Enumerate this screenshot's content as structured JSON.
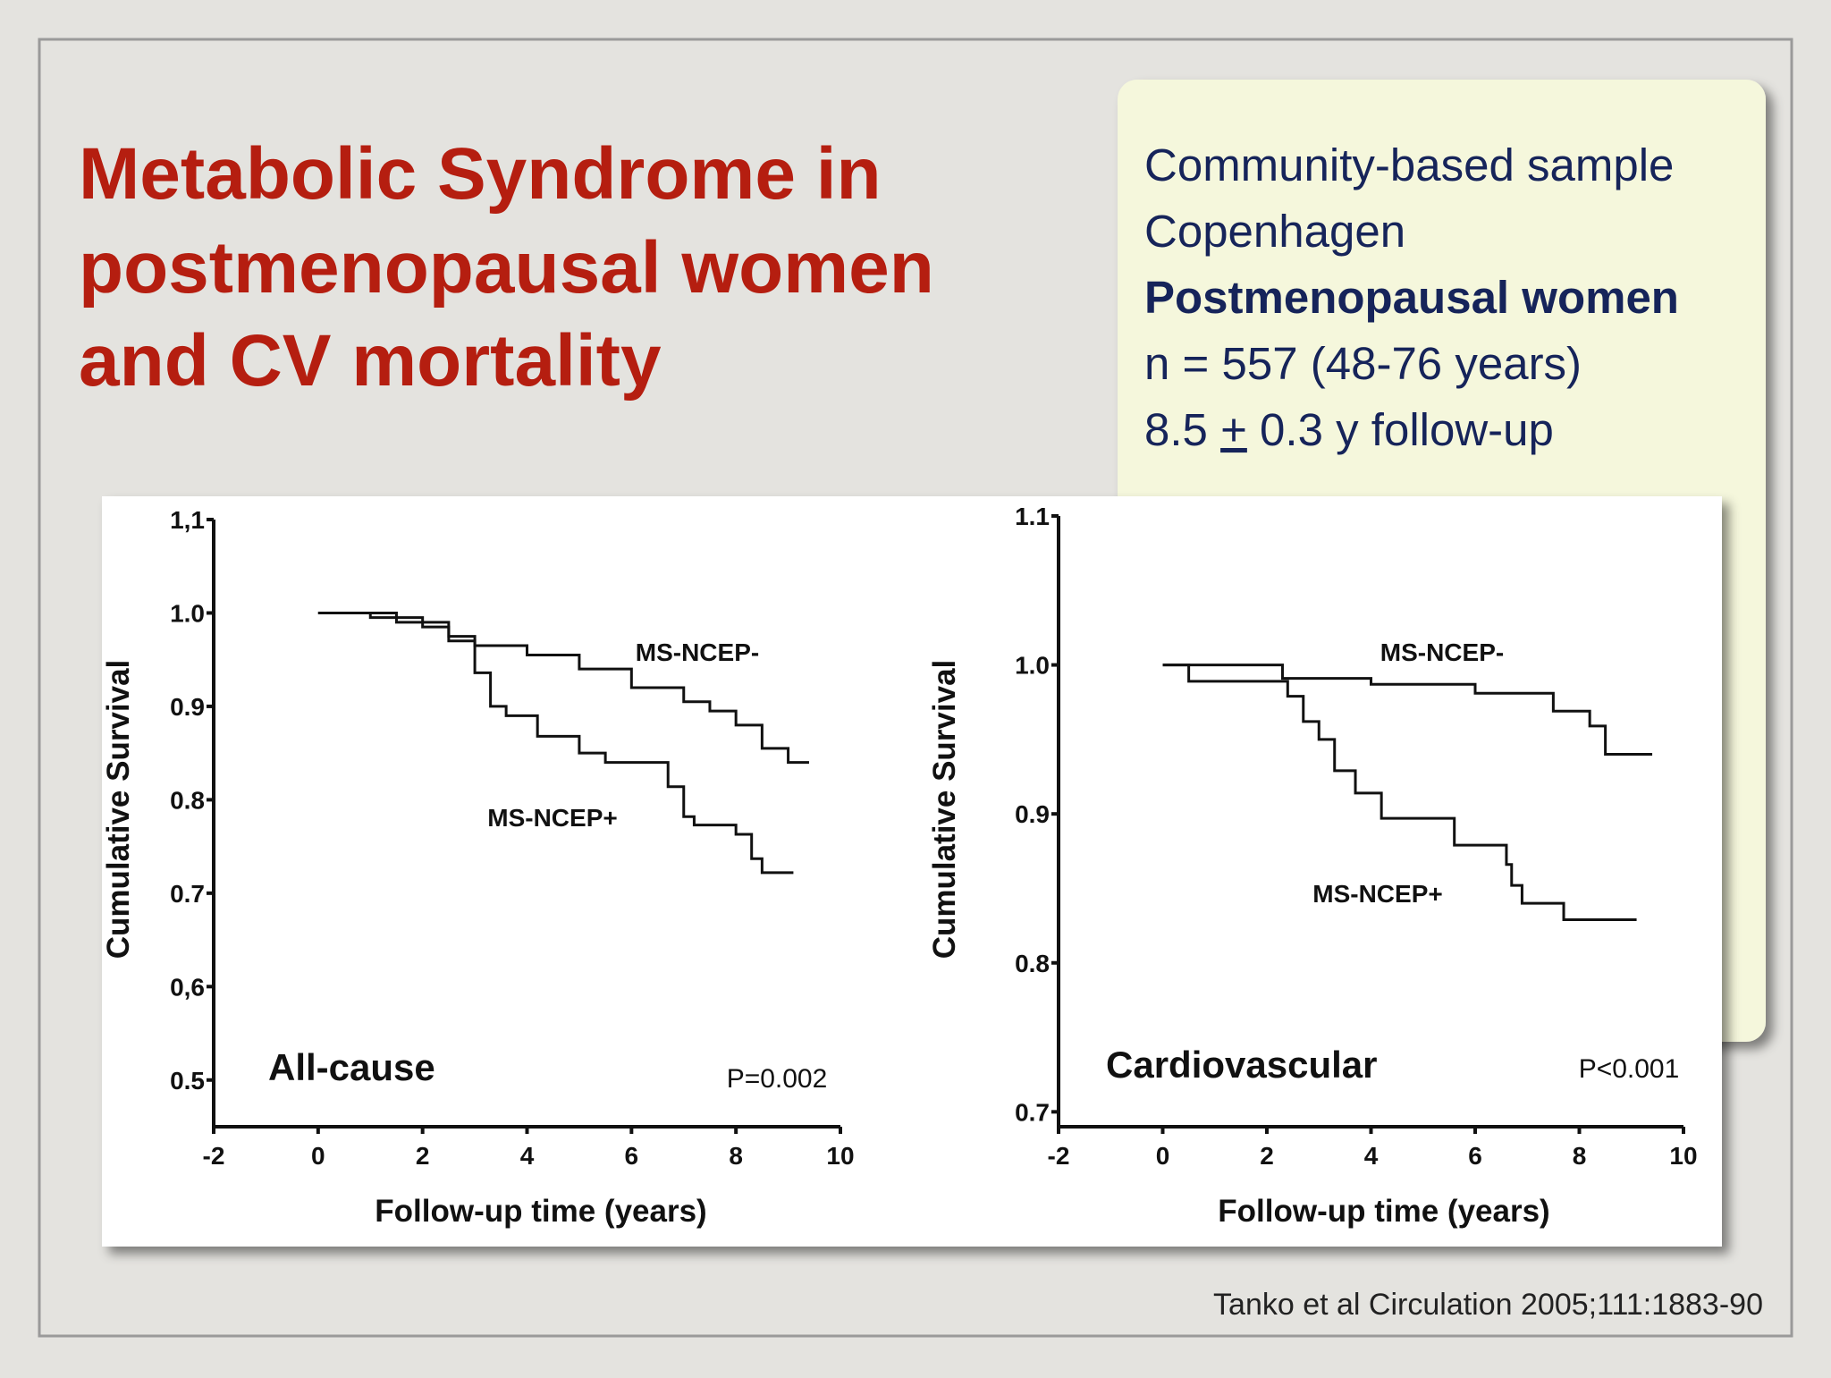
{
  "slide": {
    "title": [
      "Metabolic Syndrome in",
      "postmenopausal women",
      "and CV mortality"
    ],
    "info": {
      "lines": [
        "Community-based sample",
        "Copenhagen",
        "Postmenopausal women",
        "n = 557 (48-76 years)"
      ],
      "follow_up": [
        "8.5 ",
        "+",
        " 0.3 y follow-up"
      ]
    },
    "citation": "Tanko et al Circulation 2005;111:1883-90"
  },
  "chart_data": [
    {
      "type": "line",
      "step": "post",
      "panel_label": "All-cause",
      "p_value": "P=0.002",
      "x_label": "Follow-up time (years)",
      "y_label": "Cumulative Survival",
      "xlim": [
        -2,
        10
      ],
      "xticks": [
        -2,
        0,
        2,
        4,
        6,
        8,
        10
      ],
      "ylim": [
        0.45,
        1.1
      ],
      "yticks": [
        {
          "value": 1.1,
          "label": "1,1"
        },
        {
          "value": 1.0,
          "label": "1.0"
        },
        0.9,
        0.8,
        0.7,
        {
          "value": 0.6,
          "label": "0,6"
        },
        0.5
      ],
      "series": [
        {
          "name": "MS-NCEP-",
          "color": "#111111",
          "x": [
            0,
            1,
            2,
            2.5,
            3,
            4,
            5,
            6,
            7,
            7.5,
            8,
            8.5,
            9,
            9.4
          ],
          "values": [
            1.0,
            0.995,
            0.985,
            0.975,
            0.965,
            0.955,
            0.94,
            0.92,
            0.905,
            0.895,
            0.88,
            0.855,
            0.84,
            0.84
          ]
        },
        {
          "name": "MS-NCEP+",
          "color": "#111111",
          "x": [
            0,
            1.5,
            2.5,
            3.0,
            3.3,
            3.6,
            4.2,
            5,
            5.5,
            6.7,
            7.0,
            7.2,
            8,
            8.3,
            8.5,
            9.1
          ],
          "values": [
            1.0,
            0.99,
            0.97,
            0.936,
            0.9,
            0.89,
            0.868,
            0.85,
            0.84,
            0.814,
            0.782,
            0.773,
            0.763,
            0.737,
            0.722,
            0.722
          ]
        }
      ]
    },
    {
      "type": "line",
      "step": "post",
      "panel_label": "Cardiovascular",
      "p_value": "P<0.001",
      "x_label": "Follow-up time (years)",
      "y_label": "Cumulative Survival",
      "xlim": [
        -2,
        10
      ],
      "xticks": [
        -2,
        0,
        2,
        4,
        6,
        8,
        10
      ],
      "ylim": [
        0.69,
        1.1
      ],
      "yticks": [
        1.1,
        {
          "value": 1.0,
          "label": "1.0"
        },
        0.9,
        0.8,
        0.7
      ],
      "series": [
        {
          "name": "MS-NCEP-",
          "color": "#111111",
          "x": [
            0,
            2.3,
            4,
            6,
            7.5,
            8.2,
            8.5,
            9.4
          ],
          "values": [
            1.0,
            0.991,
            0.987,
            0.981,
            0.969,
            0.959,
            0.94,
            0.94
          ]
        },
        {
          "name": "MS-NCEP+",
          "color": "#111111",
          "x": [
            0,
            0.5,
            2.4,
            2.7,
            3.0,
            3.3,
            3.7,
            4.2,
            5.6,
            6.6,
            6.7,
            6.9,
            7.7,
            9.1
          ],
          "values": [
            1.0,
            0.989,
            0.979,
            0.962,
            0.95,
            0.929,
            0.914,
            0.897,
            0.879,
            0.866,
            0.852,
            0.84,
            0.829,
            0.829
          ]
        }
      ]
    }
  ]
}
